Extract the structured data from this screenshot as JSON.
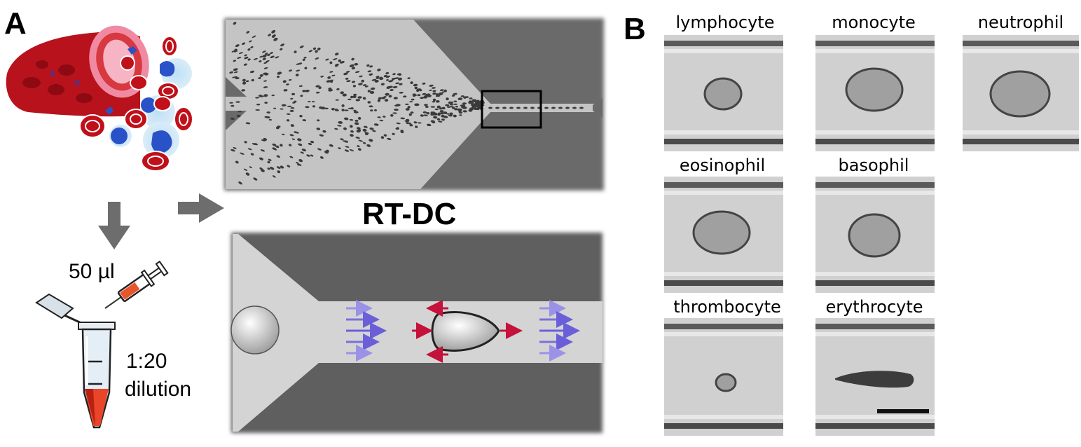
{
  "panel_a": {
    "letter": "A",
    "volume_label": "50 µl",
    "dilution_ratio": "1:20",
    "dilution_word": "dilution",
    "method_title": "RT-DC"
  },
  "panel_b": {
    "letter": "B",
    "cells": [
      {
        "name": "lymphocyte"
      },
      {
        "name": "monocyte"
      },
      {
        "name": "neutrophil"
      },
      {
        "name": "eosinophil"
      },
      {
        "name": "basophil"
      },
      {
        "name": "thrombocyte"
      },
      {
        "name": "erythrocyte"
      }
    ]
  },
  "colors": {
    "blood_red": "#c0101a",
    "plasma_blue": "#2a52c8",
    "flow_arrow": "#6a5fd8",
    "force_arrow": "#c4123a",
    "channel_dark": "#5e5e5e",
    "gray_arrow": "#6d6d6d"
  }
}
